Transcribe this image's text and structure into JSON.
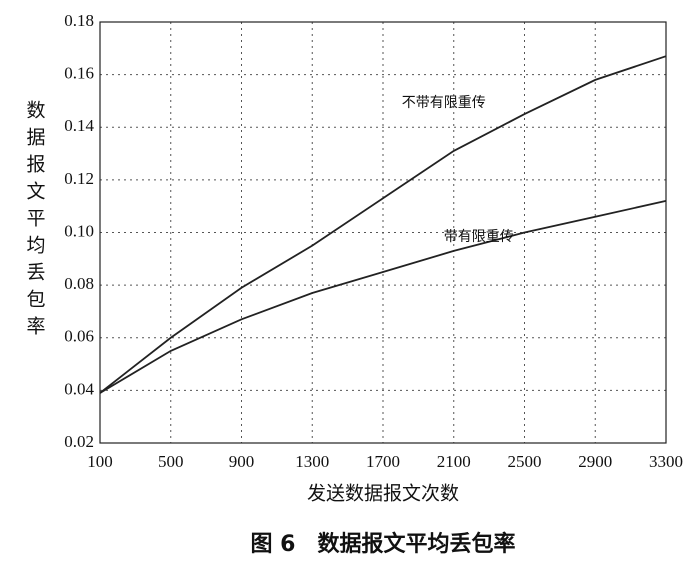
{
  "chart_data": {
    "type": "line",
    "y_label": "数据报文平均丢包率",
    "x_label": "发送数据报文次数",
    "caption": "图 6　数据报文平均丢包率",
    "x": [
      100,
      500,
      900,
      1300,
      1700,
      2100,
      2500,
      2900,
      3300
    ],
    "series": [
      {
        "name": "不带有限重传",
        "color": "#222222",
        "values": [
          0.039,
          0.06,
          0.079,
          0.095,
          0.113,
          0.131,
          0.145,
          0.158,
          0.167
        ]
      },
      {
        "name": "带有限重传",
        "color": "#222222",
        "values": [
          0.039,
          0.055,
          0.067,
          0.077,
          0.085,
          0.093,
          0.1,
          0.106,
          0.112
        ]
      }
    ],
    "xlim": [
      100,
      3300
    ],
    "xticks": [
      100,
      500,
      900,
      1300,
      1700,
      2100,
      2500,
      2900,
      3300
    ],
    "ylim": [
      0.02,
      0.18
    ],
    "yticks": [
      0.02,
      0.04,
      0.06,
      0.08,
      {
        "value": 0.1,
        "label": "0.10"
      },
      0.12,
      0.14,
      0.16,
      0.18
    ],
    "grid": true
  }
}
